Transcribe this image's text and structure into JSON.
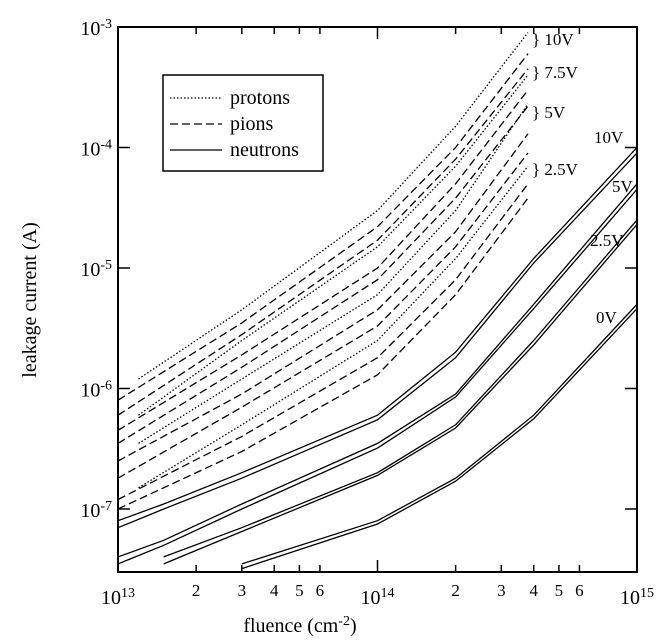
{
  "chart_data": {
    "type": "line",
    "xlabel": "fluence (cm^-2)",
    "ylabel": "leakage current (A)",
    "log_x": true,
    "log_y": true,
    "xlim": [
      10000000000000.0,
      1000000000000000.0
    ],
    "ylim": [
      3e-08,
      0.001
    ],
    "xticks": [
      {
        "value": 10000000000000.0,
        "label": "10^13"
      },
      {
        "value": 20000000000000.0,
        "label": "2"
      },
      {
        "value": 30000000000000.0,
        "label": "3"
      },
      {
        "value": 40000000000000.0,
        "label": "4"
      },
      {
        "value": 50000000000000.0,
        "label": "5"
      },
      {
        "value": 60000000000000.0,
        "label": "6"
      },
      {
        "value": 100000000000000.0,
        "label": "10^14"
      },
      {
        "value": 200000000000000.0,
        "label": "2"
      },
      {
        "value": 300000000000000.0,
        "label": "3"
      },
      {
        "value": 400000000000000.0,
        "label": "4"
      },
      {
        "value": 500000000000000.0,
        "label": "5"
      },
      {
        "value": 600000000000000.0,
        "label": "6"
      },
      {
        "value": 1000000000000000.0,
        "label": "10^15"
      }
    ],
    "yticks": [
      {
        "value": 1e-07,
        "label": "10^-7"
      },
      {
        "value": 1e-06,
        "label": "10^-6"
      },
      {
        "value": 1e-05,
        "label": "10^-5"
      },
      {
        "value": 0.0001,
        "label": "10^-4"
      },
      {
        "value": 0.001,
        "label": "10^-3"
      }
    ],
    "legend": "upper left",
    "series": [
      {
        "name": "protons",
        "color": "#000000",
        "style": "dotted",
        "x": [
          12000000000000.0,
          30000000000000.0,
          100000000000000.0,
          200000000000000.0,
          380000000000000.0
        ],
        "lines": [
          [
            1.2e-06,
            4.5e-06,
            3e-05,
            0.00015,
            0.0009
          ],
          [
            6e-07,
            2.5e-06,
            1.5e-05,
            7e-05,
            0.0004
          ],
          [
            3.5e-07,
            1.2e-06,
            6e-06,
            3e-05,
            0.00023
          ],
          [
            1.5e-07,
            5e-07,
            2.5e-06,
            1.2e-05,
            7e-05
          ]
        ]
      },
      {
        "name": "pions",
        "color": "#000000",
        "style": "dashed",
        "x": [
          10000000000000.0,
          30000000000000.0,
          100000000000000.0,
          200000000000000.0,
          380000000000000.0
        ],
        "lines": [
          [
            8e-07,
            3.5e-06,
            2.2e-05,
            0.0001,
            0.0006
          ],
          [
            6e-07,
            2.8e-06,
            1.7e-05,
            8e-05,
            0.00045
          ],
          [
            4.5e-07,
            1.9e-06,
            1e-05,
            5e-05,
            0.0003
          ],
          [
            3.5e-07,
            1.5e-06,
            8e-06,
            3.8e-05,
            0.00022
          ],
          [
            2.5e-07,
            9e-07,
            4.5e-06,
            2e-05,
            0.00013
          ],
          [
            1.8e-07,
            7e-07,
            3.3e-06,
            1.5e-05,
            9e-05
          ],
          [
            1.2e-07,
            4e-07,
            1.8e-06,
            8e-06,
            5e-05
          ],
          [
            1e-07,
            3e-07,
            1.3e-06,
            6e-06,
            3.8e-05
          ]
        ]
      },
      {
        "name": "neutrons",
        "color": "#000000",
        "style": "solid",
        "x": [
          10000000000000.0,
          15000000000000.0,
          30000000000000.0,
          100000000000000.0,
          200000000000000.0,
          400000000000000.0,
          1000000000000000.0
        ],
        "lines": [
          [
            8e-08,
            1.1e-07,
            2e-07,
            6e-07,
            2e-06,
            1.2e-05,
            0.0001
          ],
          [
            7e-08,
            1e-07,
            1.8e-07,
            5.5e-07,
            1.8e-06,
            1.1e-05,
            9e-05
          ],
          [
            4e-08,
            5.5e-08,
            1.1e-07,
            3.5e-07,
            9e-07,
            5e-06,
            5e-05
          ],
          [
            3.5e-08,
            5e-08,
            1e-07,
            3.2e-07,
            8.5e-07,
            4.6e-06,
            4.5e-05
          ],
          [
            null,
            4e-08,
            7e-08,
            2e-07,
            5e-07,
            2.5e-06,
            2.5e-05
          ],
          [
            null,
            3.5e-08,
            6.5e-08,
            1.9e-07,
            4.7e-07,
            2.3e-06,
            2.3e-05
          ],
          [
            null,
            null,
            3.5e-08,
            8e-08,
            1.8e-07,
            6e-07,
            5e-06
          ],
          [
            null,
            null,
            3.2e-08,
            7.5e-08,
            1.7e-07,
            5.6e-07,
            4.6e-06
          ]
        ]
      }
    ],
    "annotations": [
      "} 10V",
      "} 7.5V",
      "} 5V",
      "} 2.5V",
      "10V",
      "5V",
      "2.5V",
      "0V"
    ]
  }
}
